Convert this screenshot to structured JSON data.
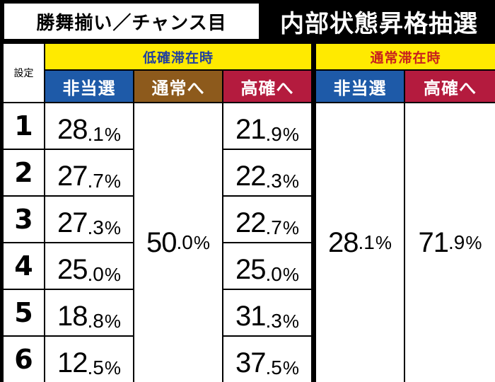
{
  "header": {
    "left_title": "勝舞揃い／チャンス目",
    "right_title": "内部状態昇格抽選"
  },
  "table": {
    "setting_label": "設定",
    "groups": [
      {
        "label": "低確滞在時"
      },
      {
        "label": "通常滞在時"
      }
    ],
    "columns": [
      "非当選",
      "通常へ",
      "高確へ",
      "非当選",
      "高確へ"
    ],
    "rows": [
      {
        "setting": "1",
        "low_none": {
          "int": "28",
          "dec": ".1",
          "pct": "%"
        },
        "low_high": {
          "int": "21",
          "dec": ".9",
          "pct": "%"
        }
      },
      {
        "setting": "2",
        "low_none": {
          "int": "27",
          "dec": ".7",
          "pct": "%"
        },
        "low_high": {
          "int": "22",
          "dec": ".3",
          "pct": "%"
        }
      },
      {
        "setting": "3",
        "low_none": {
          "int": "27",
          "dec": ".3",
          "pct": "%"
        },
        "low_high": {
          "int": "22",
          "dec": ".7",
          "pct": "%"
        }
      },
      {
        "setting": "4",
        "low_none": {
          "int": "25",
          "dec": ".0",
          "pct": "%"
        },
        "low_high": {
          "int": "25",
          "dec": ".0",
          "pct": "%"
        }
      },
      {
        "setting": "5",
        "low_none": {
          "int": "18",
          "dec": ".8",
          "pct": "%"
        },
        "low_high": {
          "int": "31",
          "dec": ".3",
          "pct": "%"
        }
      },
      {
        "setting": "6",
        "low_none": {
          "int": "12",
          "dec": ".5",
          "pct": "%"
        },
        "low_high": {
          "int": "37",
          "dec": ".5",
          "pct": "%"
        }
      }
    ],
    "low_to_normal": {
      "int": "50",
      "dec": ".0",
      "pct": "%"
    },
    "normal_none": {
      "int": "28",
      "dec": ".1",
      "pct": "%"
    },
    "normal_high": {
      "int": "71",
      "dec": ".9",
      "pct": "%"
    }
  }
}
